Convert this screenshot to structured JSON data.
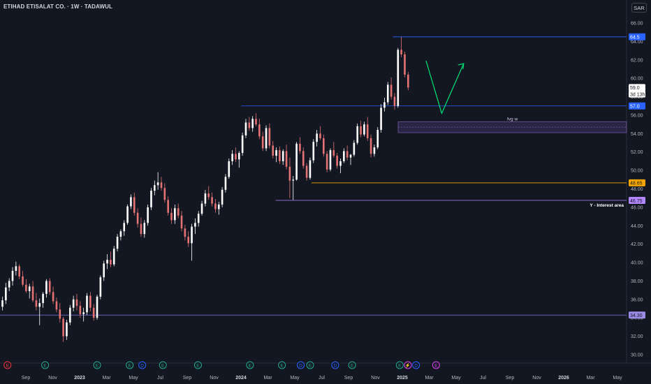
{
  "header": {
    "title": "ETIHAD ETISALAT CO. · 1W · TADAWUL",
    "currency": "SAR"
  },
  "chart_data": {
    "type": "candlestick",
    "y_ticks": [
      "30.00",
      "32.00",
      "34.00",
      "36.00",
      "38.00",
      "40.00",
      "42.00",
      "44.00",
      "46.00",
      "48.00",
      "50.00",
      "52.00",
      "54.00",
      "56.00",
      "58.00",
      "60.00",
      "62.00",
      "64.00",
      "66.00"
    ],
    "x_ticks": [
      "Sep",
      "Nov",
      "2023",
      "Mar",
      "May",
      "Jul",
      "Sep",
      "Nov",
      "2024",
      "Mar",
      "May",
      "Jul",
      "Sep",
      "Nov",
      "2025",
      "Mar",
      "May",
      "Jul",
      "Sep",
      "Nov",
      "2026",
      "Mar",
      "May"
    ],
    "ylim": [
      29,
      67
    ],
    "price_labels": [
      {
        "text": "64.5",
        "value": 64.5,
        "bg": "#2962ff",
        "fg": "#ffffff"
      },
      {
        "text": "59.0",
        "value": 59.0,
        "bg": "#ffffff",
        "fg": "#131722"
      },
      {
        "text": "3d 13h",
        "value": 58.3,
        "bg": "#ffffff",
        "fg": "#131722"
      },
      {
        "text": "57.0",
        "value": 57.0,
        "bg": "#2962ff",
        "fg": "#ffffff"
      },
      {
        "text": "48.65",
        "value": 48.65,
        "bg": "#f7a600",
        "fg": "#131722"
      },
      {
        "text": "46.75",
        "value": 46.75,
        "bg": "#b388ff",
        "fg": "#131722"
      },
      {
        "text": "34.30",
        "value": 34.3,
        "bg": "#9c8ce8",
        "fg": "#131722"
      }
    ],
    "levels": [
      {
        "value": 64.5,
        "color": "#2962ff",
        "from": 0.627
      },
      {
        "value": 57.0,
        "color": "#2962ff",
        "from": 0.385
      },
      {
        "value": 48.65,
        "color": "#f7a600",
        "from": 0.497
      },
      {
        "value": 46.75,
        "color": "#b388ff",
        "from": 0.44
      },
      {
        "value": 34.3,
        "color": "#7e72e0",
        "from": 0
      }
    ],
    "annotations": {
      "fvg": "fvg w",
      "interest": "Y - Interest area"
    },
    "fvg_zone": {
      "top": 55.3,
      "bottom": 54.1
    },
    "projection": [
      [
        61.9,
        0.68
      ],
      [
        56.2,
        0.705
      ],
      [
        61.6,
        0.74
      ]
    ],
    "events": [
      {
        "label": "E",
        "color": "#f23645",
        "xf": 0.012
      },
      {
        "label": "E",
        "color": "#22ab94",
        "xf": 0.072
      },
      {
        "label": "E",
        "color": "#22ab94",
        "xf": 0.155
      },
      {
        "label": "E",
        "color": "#22ab94",
        "xf": 0.207
      },
      {
        "label": "D",
        "color": "#2962ff",
        "xf": 0.227
      },
      {
        "label": "E",
        "color": "#22ab94",
        "xf": 0.26
      },
      {
        "label": "E",
        "color": "#22ab94",
        "xf": 0.316
      },
      {
        "label": "E",
        "color": "#22ab94",
        "xf": 0.399
      },
      {
        "label": "E",
        "color": "#22ab94",
        "xf": 0.45
      },
      {
        "label": "D",
        "color": "#2962ff",
        "xf": 0.48
      },
      {
        "label": "E",
        "color": "#22ab94",
        "xf": 0.495
      },
      {
        "label": "D",
        "color": "#2962ff",
        "xf": 0.535
      },
      {
        "label": "E",
        "color": "#22ab94",
        "xf": 0.562
      },
      {
        "label": "E",
        "color": "#22ab94",
        "xf": 0.638
      },
      {
        "label": "⚡",
        "color": "#e040fb",
        "xf": 0.651
      },
      {
        "label": "D",
        "color": "#2962ff",
        "xf": 0.664
      },
      {
        "label": "E",
        "color": "#e040fb",
        "xf": 0.696
      }
    ],
    "candles": [
      [
        35.2,
        36.3,
        34.8,
        35.9
      ],
      [
        35.9,
        37.8,
        35.5,
        37.3
      ],
      [
        37.3,
        38.3,
        36.9,
        38.0
      ],
      [
        38.0,
        39.5,
        37.5,
        39.1
      ],
      [
        39.1,
        40.1,
        38.6,
        39.6
      ],
      [
        39.6,
        39.8,
        38.2,
        38.5
      ],
      [
        38.5,
        39.1,
        37.4,
        37.6
      ],
      [
        37.6,
        38.2,
        36.7,
        36.9
      ],
      [
        36.9,
        37.7,
        36.1,
        37.4
      ],
      [
        37.4,
        38.0,
        35.7,
        35.9
      ],
      [
        35.9,
        36.7,
        34.8,
        35.2
      ],
      [
        35.2,
        36.1,
        33.2,
        35.6
      ],
      [
        35.6,
        36.8,
        35.1,
        36.6
      ],
      [
        36.6,
        38.2,
        36.2,
        38.0
      ],
      [
        38.0,
        38.3,
        36.5,
        36.8
      ],
      [
        36.8,
        37.4,
        35.5,
        35.8
      ],
      [
        35.8,
        36.2,
        34.6,
        34.9
      ],
      [
        34.9,
        35.6,
        33.5,
        33.9
      ],
      [
        33.9,
        34.1,
        31.4,
        32.0
      ],
      [
        32.0,
        33.8,
        31.6,
        33.5
      ],
      [
        33.5,
        35.4,
        33.2,
        35.1
      ],
      [
        35.1,
        36.4,
        34.7,
        36.0
      ],
      [
        36.0,
        36.6,
        34.8,
        35.3
      ],
      [
        35.3,
        35.8,
        34.0,
        34.4
      ],
      [
        34.4,
        35.1,
        33.6,
        34.6
      ],
      [
        34.6,
        36.7,
        34.3,
        36.4
      ],
      [
        36.4,
        36.8,
        34.7,
        35.1
      ],
      [
        35.1,
        35.5,
        33.7,
        34.0
      ],
      [
        34.0,
        36.5,
        33.8,
        36.3
      ],
      [
        36.3,
        38.6,
        36.0,
        38.4
      ],
      [
        38.4,
        40.2,
        38.0,
        39.9
      ],
      [
        39.9,
        40.9,
        39.3,
        40.3
      ],
      [
        40.3,
        41.2,
        39.5,
        39.8
      ],
      [
        39.8,
        41.8,
        39.6,
        41.5
      ],
      [
        41.5,
        43.1,
        41.2,
        42.8
      ],
      [
        42.8,
        43.6,
        42.4,
        43.4
      ],
      [
        43.4,
        44.6,
        42.9,
        44.3
      ],
      [
        44.3,
        46.3,
        44.1,
        46.1
      ],
      [
        46.1,
        47.4,
        45.8,
        47.1
      ],
      [
        47.1,
        47.6,
        45.1,
        45.4
      ],
      [
        45.4,
        45.9,
        43.8,
        44.2
      ],
      [
        44.2,
        44.9,
        42.8,
        43.1
      ],
      [
        43.1,
        44.6,
        42.7,
        44.3
      ],
      [
        44.3,
        46.3,
        44.0,
        46.0
      ],
      [
        46.0,
        48.1,
        45.7,
        47.8
      ],
      [
        47.8,
        48.9,
        47.3,
        48.4
      ],
      [
        48.4,
        49.8,
        47.9,
        48.7
      ],
      [
        48.7,
        49.3,
        47.8,
        48.1
      ],
      [
        48.1,
        48.6,
        46.5,
        46.8
      ],
      [
        46.8,
        47.2,
        45.1,
        45.4
      ],
      [
        45.4,
        45.9,
        44.2,
        44.6
      ],
      [
        44.6,
        46.3,
        44.2,
        45.9
      ],
      [
        45.9,
        46.4,
        44.8,
        45.1
      ],
      [
        45.1,
        45.6,
        43.4,
        43.7
      ],
      [
        43.7,
        44.1,
        42.4,
        42.8
      ],
      [
        42.8,
        43.4,
        41.7,
        42.1
      ],
      [
        42.1,
        44.2,
        40.2,
        43.9
      ],
      [
        43.9,
        44.8,
        43.1,
        44.3
      ],
      [
        44.3,
        45.6,
        43.9,
        45.3
      ],
      [
        45.3,
        46.7,
        45.1,
        46.4
      ],
      [
        46.4,
        47.9,
        46.1,
        47.5
      ],
      [
        47.5,
        48.3,
        46.8,
        47.1
      ],
      [
        47.1,
        47.6,
        46.1,
        46.4
      ],
      [
        46.4,
        46.9,
        45.4,
        45.8
      ],
      [
        45.8,
        46.6,
        45.2,
        46.3
      ],
      [
        46.3,
        48.2,
        46.0,
        47.9
      ],
      [
        47.9,
        49.6,
        47.6,
        49.3
      ],
      [
        49.3,
        51.3,
        49.1,
        51.0
      ],
      [
        51.0,
        52.2,
        50.6,
        51.8
      ],
      [
        51.8,
        52.5,
        50.9,
        51.2
      ],
      [
        51.2,
        52.1,
        50.3,
        51.9
      ],
      [
        51.9,
        54.1,
        51.6,
        53.8
      ],
      [
        53.8,
        55.6,
        53.5,
        55.2
      ],
      [
        55.2,
        55.8,
        54.3,
        54.6
      ],
      [
        54.6,
        55.9,
        54.2,
        55.6
      ],
      [
        55.6,
        56.2,
        54.8,
        55.0
      ],
      [
        55.0,
        55.6,
        53.4,
        53.7
      ],
      [
        53.7,
        54.2,
        52.1,
        52.4
      ],
      [
        52.4,
        54.9,
        52.1,
        54.6
      ],
      [
        54.6,
        55.1,
        52.4,
        52.7
      ],
      [
        52.7,
        53.2,
        51.3,
        51.6
      ],
      [
        51.6,
        52.5,
        50.9,
        52.2
      ],
      [
        52.2,
        52.6,
        50.7,
        51.0
      ],
      [
        51.0,
        52.3,
        50.6,
        52.1
      ],
      [
        52.1,
        52.8,
        50.1,
        50.4
      ],
      [
        50.4,
        51.4,
        47.0,
        48.9
      ],
      [
        48.9,
        49.4,
        46.8,
        49.0
      ],
      [
        49.0,
        53.1,
        48.9,
        52.9
      ],
      [
        52.9,
        53.6,
        51.8,
        52.1
      ],
      [
        52.1,
        52.5,
        50.2,
        50.5
      ],
      [
        50.5,
        50.8,
        48.9,
        49.2
      ],
      [
        49.2,
        51.4,
        49.0,
        51.1
      ],
      [
        51.1,
        53.4,
        50.8,
        53.1
      ],
      [
        53.1,
        54.4,
        52.6,
        54.0
      ],
      [
        54.0,
        54.8,
        53.3,
        53.5
      ],
      [
        53.5,
        53.9,
        51.5,
        51.8
      ],
      [
        51.8,
        52.1,
        49.8,
        50.1
      ],
      [
        50.1,
        52.4,
        49.9,
        52.2
      ],
      [
        52.2,
        53.1,
        51.4,
        51.6
      ],
      [
        51.6,
        51.9,
        50.2,
        50.5
      ],
      [
        50.5,
        51.3,
        49.7,
        51.0
      ],
      [
        51.0,
        52.4,
        50.8,
        52.1
      ],
      [
        52.1,
        52.7,
        51.1,
        51.4
      ],
      [
        51.4,
        51.8,
        50.6,
        51.7
      ],
      [
        51.7,
        53.3,
        51.5,
        53.0
      ],
      [
        53.0,
        55.1,
        52.8,
        54.8
      ],
      [
        54.8,
        55.4,
        53.6,
        53.9
      ],
      [
        53.9,
        55.3,
        53.7,
        55.0
      ],
      [
        55.0,
        55.8,
        53.2,
        53.5
      ],
      [
        53.5,
        53.9,
        51.4,
        51.8
      ],
      [
        51.8,
        52.8,
        51.5,
        52.5
      ],
      [
        52.5,
        54.7,
        52.3,
        54.4
      ],
      [
        54.4,
        57.2,
        54.1,
        56.8
      ],
      [
        56.8,
        57.9,
        56.4,
        57.4
      ],
      [
        57.4,
        59.6,
        57.1,
        59.3
      ],
      [
        59.3,
        60.1,
        57.7,
        58.0
      ],
      [
        58.0,
        58.4,
        56.6,
        57.0
      ],
      [
        57.0,
        63.3,
        56.8,
        63.1
      ],
      [
        63.1,
        64.5,
        62.3,
        62.6
      ],
      [
        62.6,
        62.9,
        60.1,
        60.4
      ],
      [
        60.4,
        60.7,
        58.7,
        59.0
      ]
    ]
  }
}
